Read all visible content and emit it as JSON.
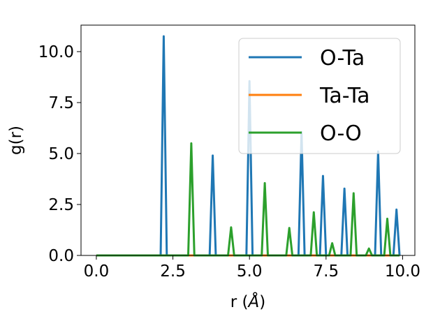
{
  "chart_data": {
    "type": "line",
    "xlabel_prefix": "r (",
    "xlabel_symbol": "Å",
    "xlabel_suffix": ")",
    "ylabel": "g(r)",
    "xlim": [
      -0.5,
      10.4
    ],
    "ylim": [
      0,
      11.3
    ],
    "xticks": [
      0.0,
      2.5,
      5.0,
      7.5,
      10.0
    ],
    "xtick_labels": [
      "0.0",
      "2.5",
      "5.0",
      "7.5",
      "10.0"
    ],
    "yticks": [
      0.0,
      2.5,
      5.0,
      7.5,
      10.0
    ],
    "ytick_labels": [
      "0.0",
      "2.5",
      "5.0",
      "7.5",
      "10.0"
    ],
    "grid": false,
    "legend_position": "upper right",
    "x_range": [
      0.0,
      9.9
    ],
    "peak_halfwidth": 0.1,
    "series": [
      {
        "name": "O-Ta",
        "color": "#1f77b4",
        "peaks": [
          [
            2.2,
            10.75
          ],
          [
            3.8,
            4.9
          ],
          [
            5.0,
            8.55
          ],
          [
            6.7,
            6.05
          ],
          [
            7.4,
            3.9
          ],
          [
            8.1,
            3.28
          ],
          [
            9.2,
            5.1
          ],
          [
            9.8,
            2.25
          ]
        ]
      },
      {
        "name": "Ta-Ta",
        "color": "#ff7f0e",
        "peaks": []
      },
      {
        "name": "O-O",
        "color": "#2ca02c",
        "peaks": [
          [
            3.1,
            5.5
          ],
          [
            4.4,
            1.38
          ],
          [
            5.5,
            3.55
          ],
          [
            6.3,
            1.35
          ],
          [
            7.1,
            2.12
          ],
          [
            7.7,
            0.6
          ],
          [
            8.4,
            3.05
          ],
          [
            8.9,
            0.34
          ],
          [
            9.5,
            1.8
          ]
        ]
      }
    ]
  }
}
